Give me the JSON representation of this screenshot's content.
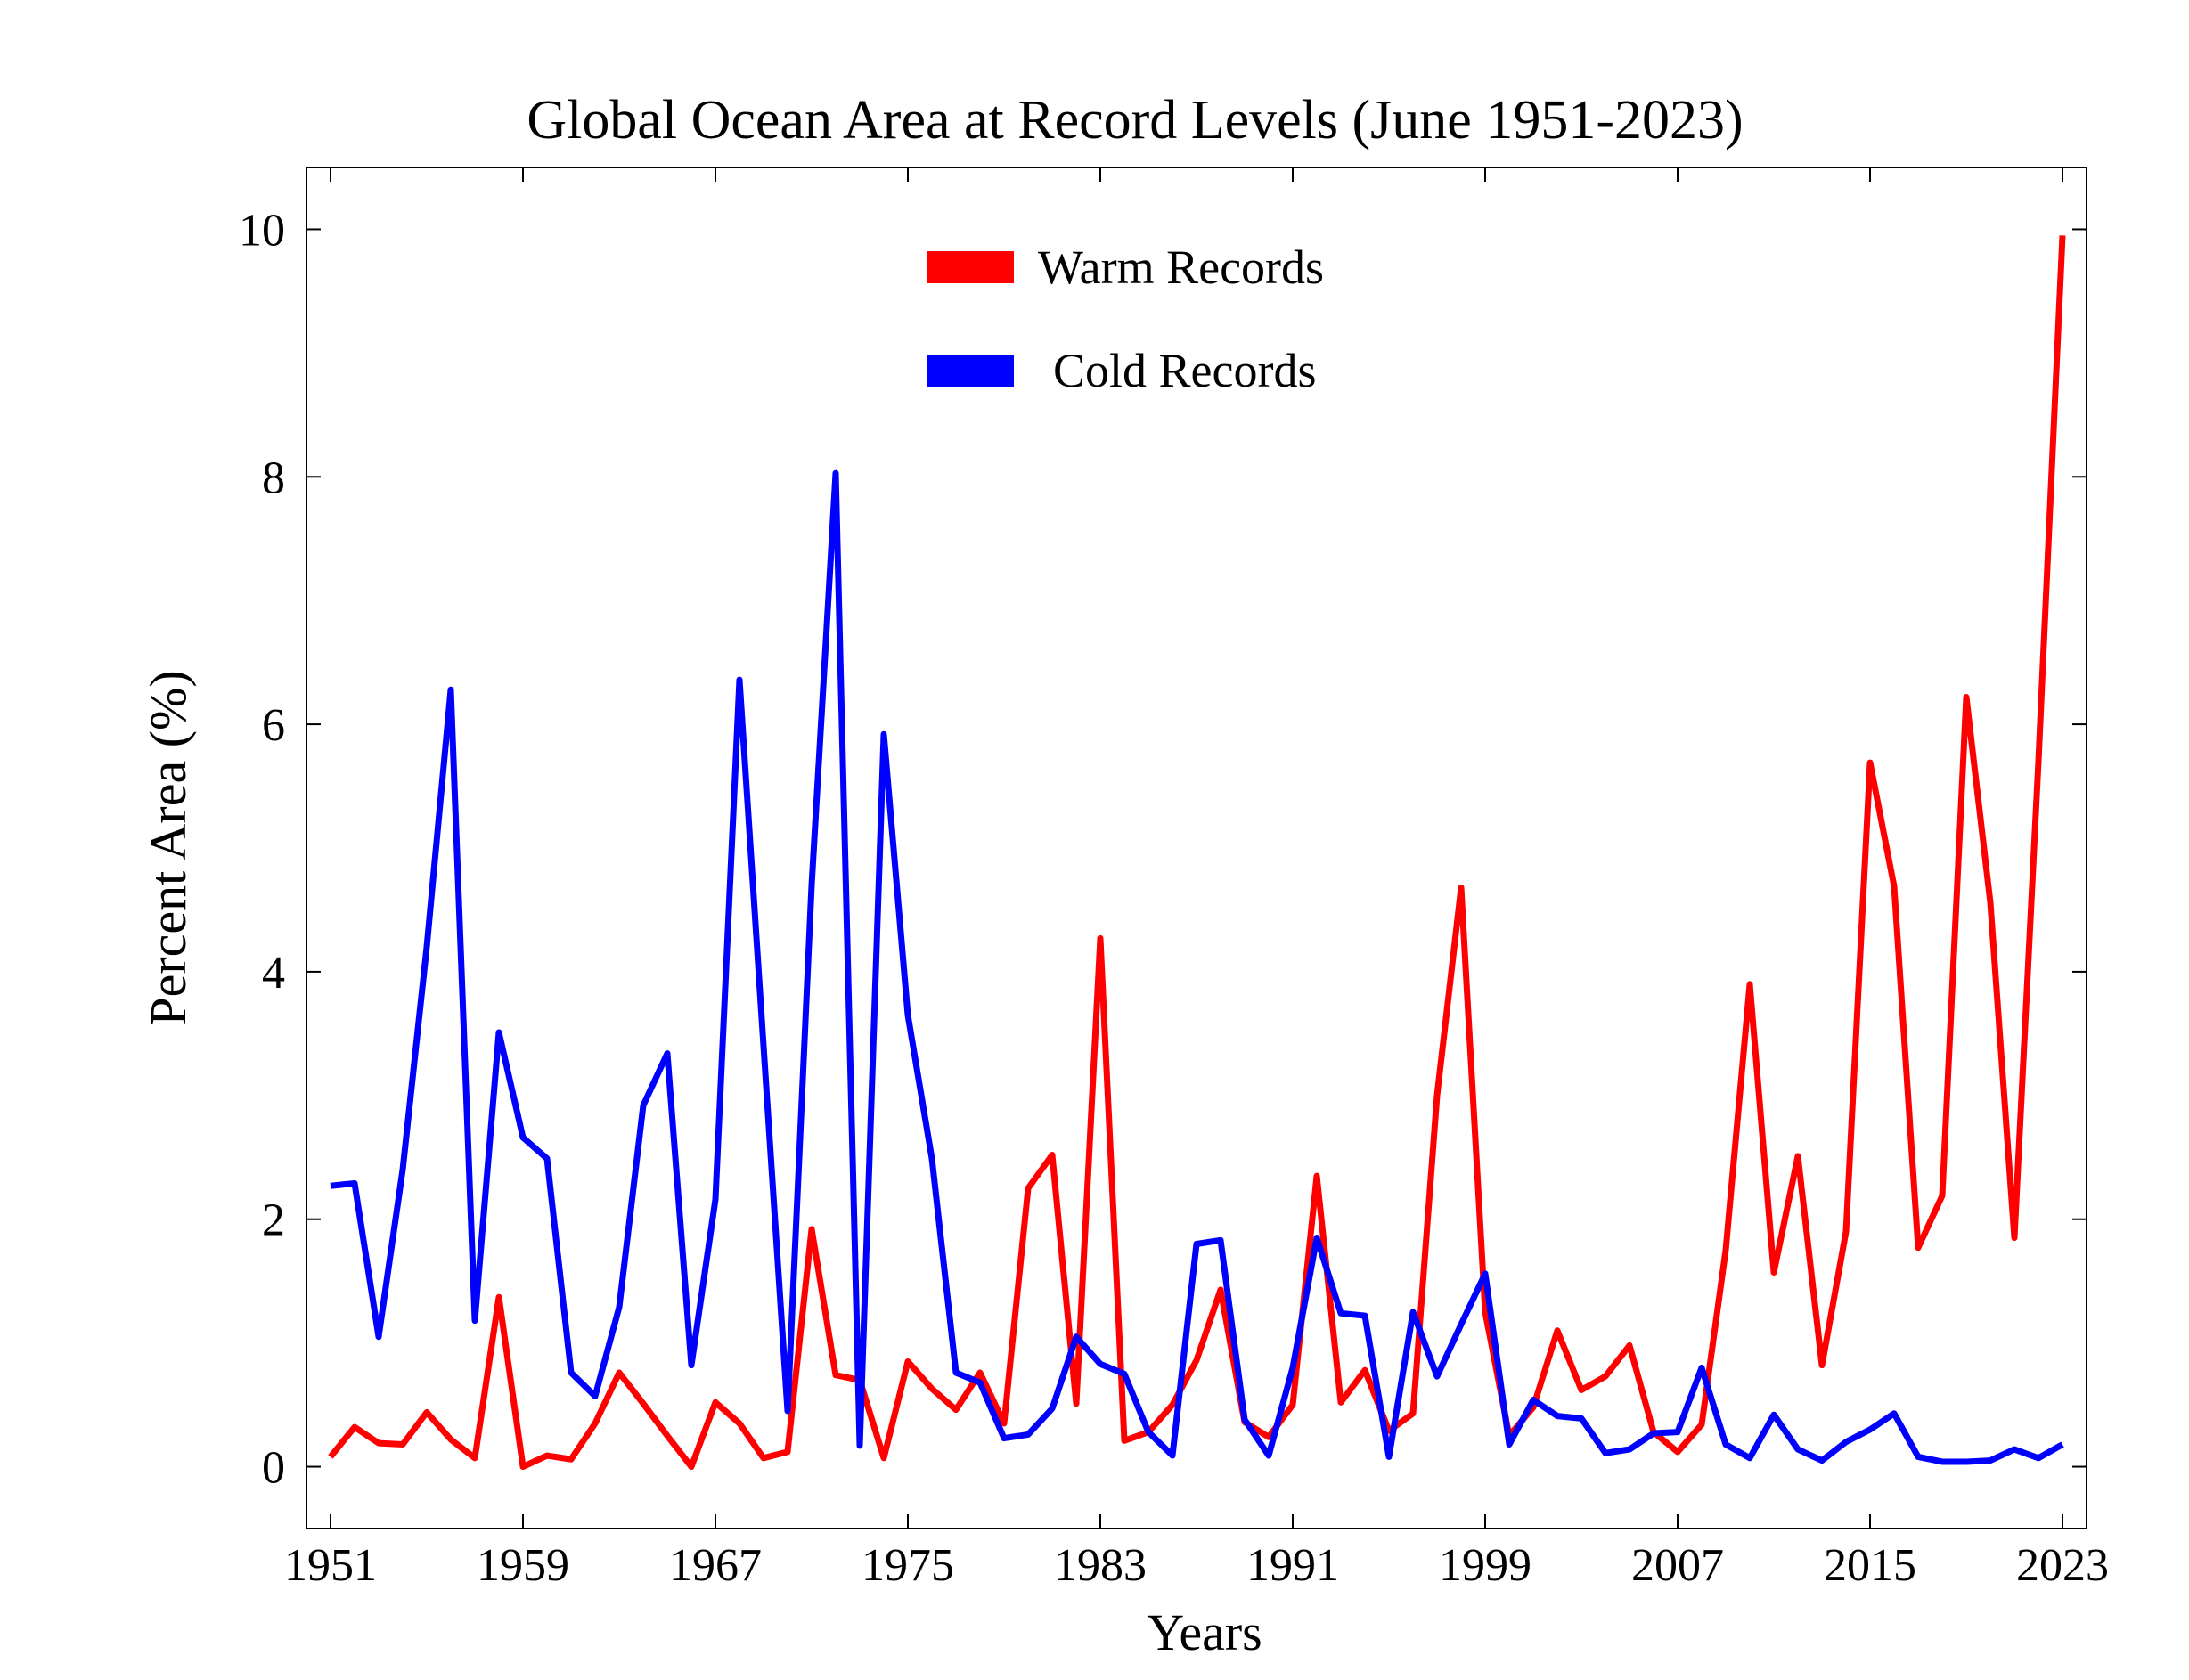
{
  "chart_data": {
    "type": "line",
    "title": "Global Ocean Area at Record Levels (June 1951-2023)",
    "xlabel": "Years",
    "ylabel": "Percent Area (%)",
    "xlim": [
      1950,
      2024
    ],
    "ylim": [
      -0.5,
      10.5
    ],
    "x_ticks": [
      "1951",
      "1959",
      "1967",
      "1975",
      "1983",
      "1991",
      "1999",
      "2007",
      "2015",
      "2023"
    ],
    "y_ticks": [
      "0",
      "2",
      "4",
      "6",
      "8",
      "10"
    ],
    "grid": false,
    "legend_position": "top-center",
    "x": [
      1951,
      1952,
      1953,
      1954,
      1955,
      1956,
      1957,
      1958,
      1959,
      1960,
      1961,
      1962,
      1963,
      1964,
      1965,
      1966,
      1967,
      1968,
      1969,
      1970,
      1971,
      1972,
      1973,
      1974,
      1975,
      1976,
      1977,
      1978,
      1979,
      1980,
      1981,
      1982,
      1983,
      1984,
      1985,
      1986,
      1987,
      1988,
      1989,
      1990,
      1991,
      1992,
      1993,
      1994,
      1995,
      1996,
      1997,
      1998,
      1999,
      2000,
      2001,
      2002,
      2003,
      2004,
      2005,
      2006,
      2007,
      2008,
      2009,
      2010,
      2011,
      2012,
      2013,
      2014,
      2015,
      2016,
      2017,
      2018,
      2019,
      2020,
      2021,
      2022,
      2023
    ],
    "series": [
      {
        "name": "Warm Records",
        "color": "#ff0000",
        "values": [
          0.08,
          0.32,
          0.19,
          0.18,
          0.44,
          0.22,
          0.07,
          1.37,
          0.0,
          0.09,
          0.06,
          0.35,
          0.76,
          0.51,
          0.25,
          0.0,
          0.52,
          0.35,
          0.07,
          0.12,
          1.92,
          0.74,
          0.7,
          0.07,
          0.85,
          0.63,
          0.46,
          0.76,
          0.35,
          2.25,
          2.52,
          0.51,
          4.27,
          0.21,
          0.28,
          0.5,
          0.86,
          1.43,
          0.36,
          0.24,
          0.5,
          2.35,
          0.52,
          0.78,
          0.29,
          0.43,
          3.0,
          4.68,
          1.25,
          0.25,
          0.48,
          1.1,
          0.62,
          0.73,
          0.98,
          0.28,
          0.12,
          0.34,
          1.75,
          3.9,
          1.57,
          2.51,
          0.82,
          1.9,
          5.69,
          4.69,
          1.77,
          2.19,
          6.22,
          4.56,
          1.85,
          5.7,
          9.95
        ]
      },
      {
        "name": "Cold Records",
        "color": "#0000ff",
        "values": [
          2.27,
          2.29,
          1.05,
          2.4,
          4.2,
          6.28,
          1.18,
          3.51,
          2.66,
          2.49,
          0.76,
          0.57,
          1.29,
          2.92,
          3.34,
          0.82,
          2.16,
          6.36,
          3.4,
          0.45,
          4.7,
          8.03,
          0.17,
          5.92,
          3.65,
          2.49,
          0.76,
          0.68,
          0.23,
          0.26,
          0.47,
          1.05,
          0.83,
          0.75,
          0.28,
          0.09,
          1.8,
          1.83,
          0.38,
          0.09,
          0.8,
          1.85,
          1.24,
          1.22,
          0.08,
          1.25,
          0.73,
          1.15,
          1.56,
          0.18,
          0.54,
          0.41,
          0.39,
          0.11,
          0.14,
          0.27,
          0.28,
          0.8,
          0.18,
          0.07,
          0.42,
          0.14,
          0.05,
          0.2,
          0.3,
          0.43,
          0.08,
          0.04,
          0.04,
          0.05,
          0.14,
          0.07,
          0.18
        ]
      }
    ]
  }
}
